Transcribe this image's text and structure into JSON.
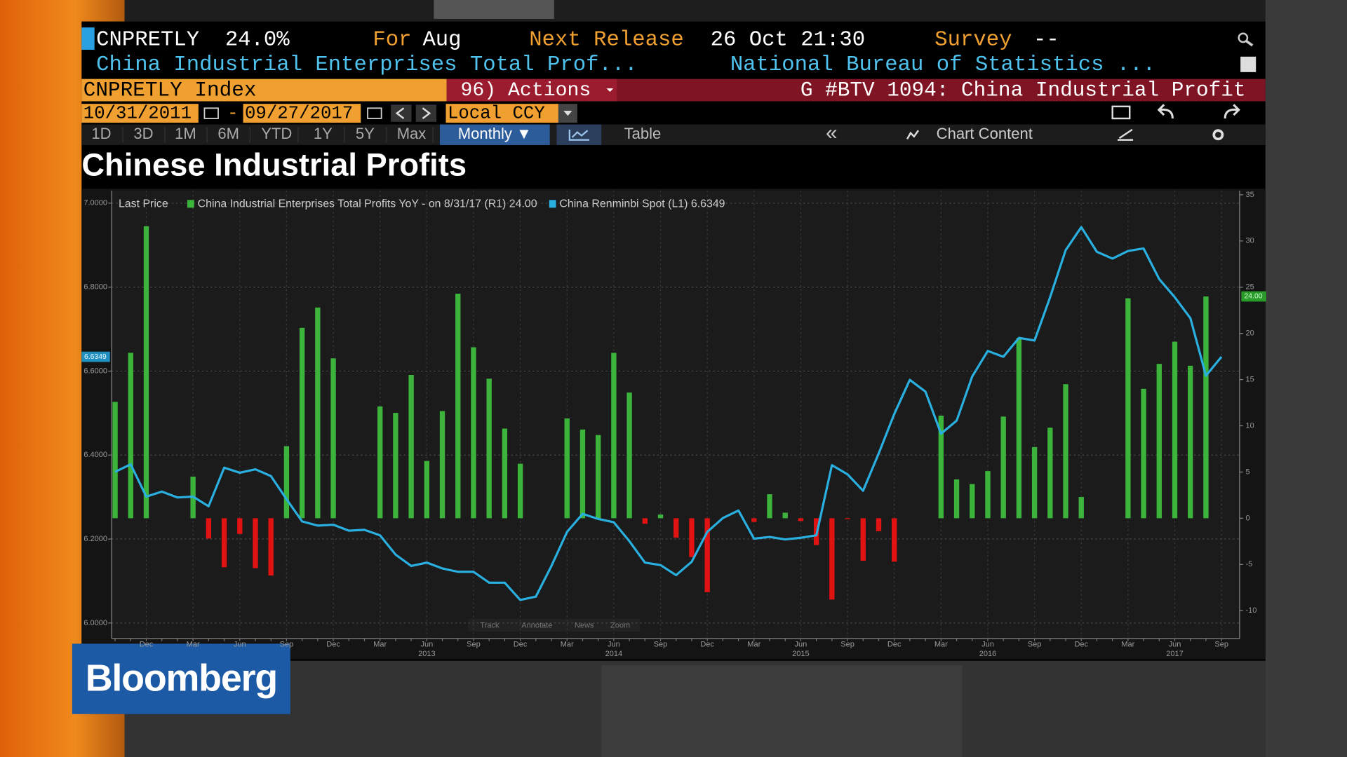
{
  "header": {
    "ticker": "CNPRETLY",
    "value": "24.0%",
    "for_label": "For",
    "period": "Aug",
    "release_label": "Next Release",
    "release": "26 Oct 21:30",
    "survey_label": "Survey",
    "survey": "--",
    "description": "China Industrial Enterprises Total Prof...",
    "source": "National Bureau of Statistics ..."
  },
  "command_bar": {
    "security": "CNPRETLY Index",
    "actions": "96) Actions",
    "page": "G #BTV 1094: China Industrial Profit"
  },
  "date_bar": {
    "start": "10/31/2011",
    "separator": "-",
    "end": "09/27/2017",
    "currency": "Local CCY"
  },
  "tabs": {
    "periods": [
      "1D",
      "3D",
      "1M",
      "6M",
      "YTD",
      "1Y",
      "5Y",
      "Max"
    ],
    "frequency": "Monthly ▼",
    "table": "Table",
    "collapse": "«",
    "chart_content": "Chart Content"
  },
  "chart_data": {
    "type": "bar",
    "title": "Chinese Industrial Profits",
    "legend_title": "Last Price",
    "categories": [
      null,
      null,
      "Dec",
      null,
      null,
      "Mar",
      null,
      null,
      "Jun",
      null,
      null,
      "Sep",
      null,
      null,
      "Dec",
      null,
      null,
      "Mar",
      null,
      null,
      "Jun",
      null,
      null,
      "Sep",
      null,
      null,
      "Dec",
      null,
      null,
      "Mar",
      null,
      null,
      "Jun",
      null,
      null,
      "Sep",
      null,
      null,
      "Dec",
      null,
      null,
      "Mar",
      null,
      null,
      "Jun",
      null,
      null,
      "Sep",
      null,
      null,
      "Dec",
      null,
      null,
      "Mar",
      null,
      null,
      "Jun",
      null,
      null,
      "Sep",
      null,
      null,
      "Dec",
      null,
      null,
      "Mar",
      null,
      null,
      "Jun",
      null,
      null,
      "Sep"
    ],
    "x_year_labels": [
      null,
      null,
      null,
      null,
      null,
      null,
      null,
      null,
      null,
      null,
      null,
      null,
      null,
      null,
      null,
      null,
      null,
      null,
      null,
      null,
      "2013",
      null,
      null,
      null,
      null,
      null,
      null,
      null,
      null,
      null,
      null,
      null,
      "2014",
      null,
      null,
      null,
      null,
      null,
      null,
      null,
      null,
      null,
      null,
      null,
      "2015",
      null,
      null,
      null,
      null,
      null,
      null,
      null,
      null,
      null,
      null,
      null,
      "2016",
      null,
      null,
      null,
      null,
      null,
      null,
      null,
      null,
      null,
      null,
      null,
      "2017",
      null,
      null,
      null
    ],
    "series": [
      {
        "name": "China Industrial Enterprises Total Profits YoY - on 8/31/17 (R1) 24.00",
        "type": "bar",
        "axis": "y2",
        "color": "#3cb43c",
        "negative_color": "#e01212",
        "last_value_label": "24.00",
        "values": [
          12.6,
          17.9,
          31.6,
          null,
          null,
          4.5,
          -2.2,
          -5.3,
          -1.7,
          -5.4,
          -6.2,
          7.8,
          20.6,
          22.8,
          17.3,
          null,
          null,
          12.1,
          11.4,
          15.5,
          6.2,
          11.6,
          24.3,
          18.5,
          15.1,
          9.7,
          5.9,
          null,
          null,
          10.8,
          9.6,
          9.0,
          17.9,
          13.6,
          -0.6,
          0.4,
          -2.1,
          -4.2,
          -8.0,
          null,
          null,
          -0.4,
          2.6,
          0.6,
          -0.3,
          -2.9,
          -8.8,
          -0.1,
          -4.6,
          -1.4,
          -4.7,
          null,
          null,
          11.1,
          4.2,
          3.7,
          5.1,
          11.0,
          19.5,
          7.7,
          9.8,
          14.5,
          2.3,
          null,
          null,
          23.8,
          14.0,
          16.7,
          19.1,
          16.5,
          24.0,
          null
        ]
      },
      {
        "name": "China Renminbi Spot (L1) 6.6349",
        "type": "line",
        "axis": "y",
        "color": "#2ab0e0",
        "last_value_label": "6.6349",
        "values": [
          6.36,
          6.378,
          6.301,
          6.313,
          6.299,
          6.301,
          6.278,
          6.37,
          6.358,
          6.366,
          6.35,
          6.295,
          6.242,
          6.232,
          6.234,
          6.22,
          6.222,
          6.209,
          6.163,
          6.136,
          6.144,
          6.13,
          6.122,
          6.122,
          6.096,
          6.096,
          6.055,
          6.063,
          6.136,
          6.217,
          6.26,
          6.248,
          6.24,
          6.195,
          6.144,
          6.138,
          6.114,
          6.146,
          6.217,
          6.25,
          6.268,
          6.201,
          6.205,
          6.199,
          6.203,
          6.209,
          6.376,
          6.354,
          6.315,
          6.404,
          6.498,
          6.579,
          6.551,
          6.451,
          6.482,
          6.587,
          6.648,
          6.634,
          6.679,
          6.673,
          6.776,
          6.888,
          6.943,
          6.884,
          6.868,
          6.886,
          6.892,
          6.819,
          6.776,
          6.726,
          6.589,
          6.634
        ]
      }
    ],
    "ylim": [
      5.963,
      7.03
    ],
    "yticks": [
      {
        "value": 6,
        "label": "6.0000"
      },
      {
        "value": 6.2,
        "label": "6.2000"
      },
      {
        "value": 6.4,
        "label": "6.4000"
      },
      {
        "value": 6.6,
        "label": "6.6000"
      },
      {
        "value": 6.8,
        "label": "6.8000"
      },
      {
        "value": 7,
        "label": "7.0000"
      }
    ],
    "y2lim": [
      -13.02,
      35.46
    ],
    "y2ticks": [
      -10,
      -5,
      0,
      5,
      10,
      15,
      20,
      25,
      30,
      35
    ],
    "grid": true,
    "tools": [
      "Track",
      "Annotate",
      "News",
      "Zoom"
    ]
  },
  "logo": "Bloomberg"
}
